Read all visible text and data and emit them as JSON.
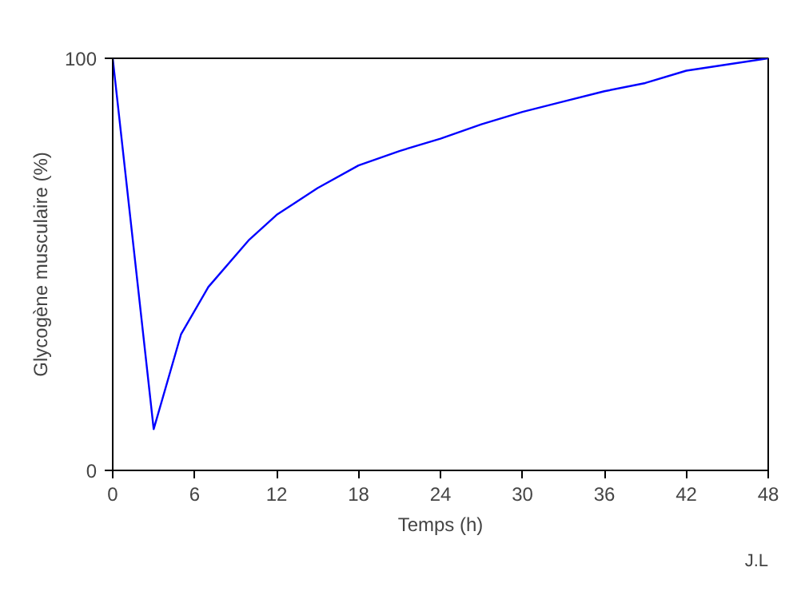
{
  "chart_data": {
    "type": "line",
    "xlabel": "Temps (h)",
    "ylabel": "Glycogène musculaire (%)",
    "x": [
      0,
      3,
      5,
      7,
      10,
      12,
      15,
      18,
      21,
      24,
      27,
      30,
      33,
      36,
      39,
      42,
      45,
      48
    ],
    "series": [
      {
        "color": "#0000ff",
        "values": [
          100,
          10,
          33,
          44.5,
          56,
          62,
          68.5,
          74,
          77.5,
          80.5,
          84,
          87,
          89.5,
          92,
          94,
          97,
          98.5,
          100
        ]
      }
    ],
    "xlim": [
      0,
      48
    ],
    "ylim": [
      0,
      100
    ],
    "xticks": [
      0,
      6,
      12,
      18,
      24,
      30,
      36,
      42,
      48
    ],
    "yticks": [
      0,
      100
    ],
    "marker": "none",
    "line_style": "solid",
    "annotations": [
      "J.L"
    ]
  }
}
